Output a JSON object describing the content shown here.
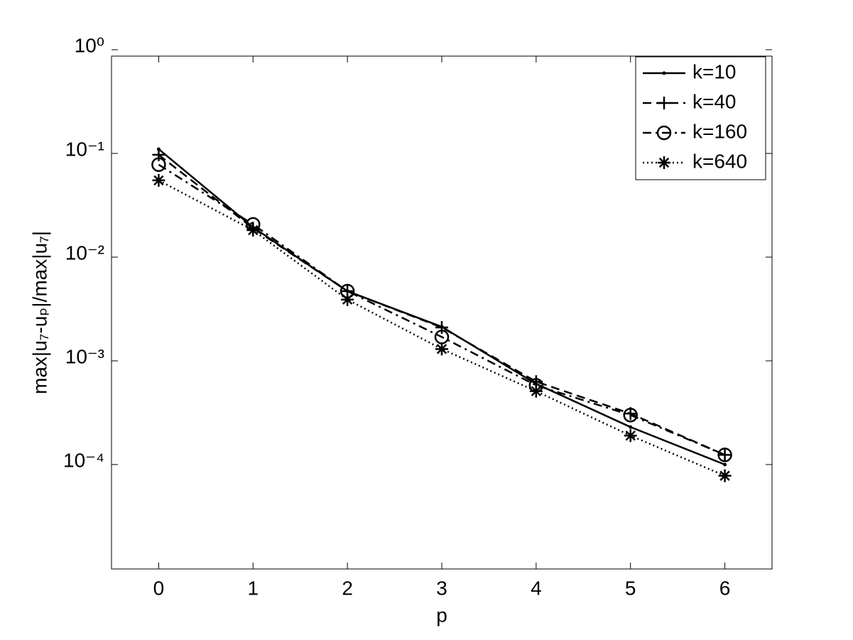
{
  "chart_data": {
    "type": "line",
    "x_label": "p",
    "y_label": "max|u₇-uₚ|/max|u₇|",
    "x": [
      0,
      1,
      2,
      3,
      4,
      5,
      6
    ],
    "xlim": [
      -0.5,
      6.5
    ],
    "xticks": [
      0,
      1,
      2,
      3,
      4,
      5,
      6
    ],
    "ylim": [
      1e-05,
      1
    ],
    "y_scale": "log",
    "yticks": [
      {
        "value": 0.0001,
        "label": "10⁻⁴"
      },
      {
        "value": 0.001,
        "label": "10⁻³"
      },
      {
        "value": 0.01,
        "label": "10⁻²"
      },
      {
        "value": 0.1,
        "label": "10⁻¹"
      },
      {
        "value": 1,
        "label": "10⁰"
      }
    ],
    "grid": false,
    "legend": "upper right",
    "series": [
      {
        "name": "k=10",
        "color": "#000000",
        "linestyle": "solid",
        "marker": "point",
        "values": [
          0.11,
          0.0194,
          0.0047,
          0.00213,
          0.0006,
          0.00023,
          0.0001
        ]
      },
      {
        "name": "k=40",
        "color": "#000000",
        "linestyle": "dashed",
        "marker": "plus",
        "values": [
          0.097,
          0.019,
          0.0047,
          0.0021,
          0.00063,
          0.00031,
          0.000124
        ]
      },
      {
        "name": "k=160",
        "color": "#000000",
        "linestyle": "dashdot",
        "marker": "circle",
        "values": [
          0.078,
          0.0207,
          0.0047,
          0.0017,
          0.00058,
          0.0003,
          0.000124
        ]
      },
      {
        "name": "k=640",
        "color": "#000000",
        "linestyle": "dotted",
        "marker": "star",
        "values": [
          0.055,
          0.0182,
          0.0039,
          0.0013,
          0.00051,
          0.00019,
          7.8e-05
        ]
      }
    ]
  }
}
